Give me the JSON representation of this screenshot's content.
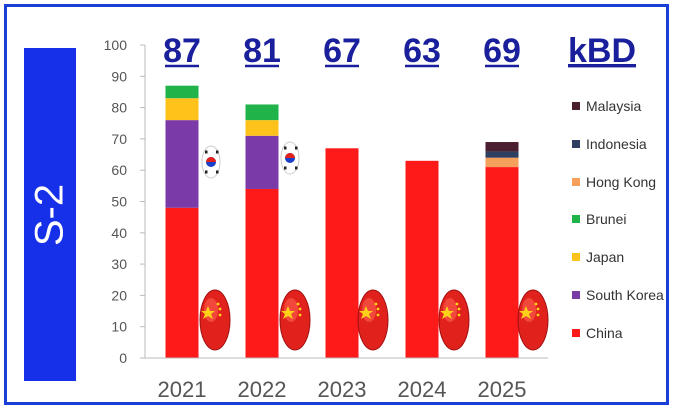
{
  "side_label": "S-2",
  "unit_label": "kBD",
  "chart_data": {
    "type": "bar",
    "stacked": true,
    "categories": [
      "2021",
      "2022",
      "2023",
      "2024",
      "2025"
    ],
    "totals": [
      "87",
      "81",
      "67",
      "63",
      "69"
    ],
    "ylim": [
      0,
      100
    ],
    "yticks": [
      0,
      10,
      20,
      30,
      40,
      50,
      60,
      70,
      80,
      90,
      100
    ],
    "legend_position": "right",
    "grid": false,
    "series": [
      {
        "name": "China",
        "color": "#ff1a1a",
        "values": [
          48,
          54,
          67,
          63,
          61
        ]
      },
      {
        "name": "South Korea",
        "color": "#7a3aa8",
        "values": [
          28,
          17,
          0,
          0,
          0
        ]
      },
      {
        "name": "Japan",
        "color": "#ffc21a",
        "values": [
          7,
          5,
          0,
          0,
          0
        ]
      },
      {
        "name": "Brunei",
        "color": "#1fb34a",
        "values": [
          4,
          5,
          0,
          0,
          0
        ]
      },
      {
        "name": "Hong Kong",
        "color": "#f5a05a",
        "values": [
          0,
          0,
          0,
          0,
          3
        ]
      },
      {
        "name": "Indonesia",
        "color": "#2f3f5f",
        "values": [
          0,
          0,
          0,
          0,
          2
        ]
      },
      {
        "name": "Malaysia",
        "color": "#4a2030",
        "values": [
          0,
          0,
          0,
          0,
          3
        ]
      }
    ],
    "icons": {
      "china": "china-flag-icon",
      "south_korea": "south-korea-flag-icon"
    }
  }
}
